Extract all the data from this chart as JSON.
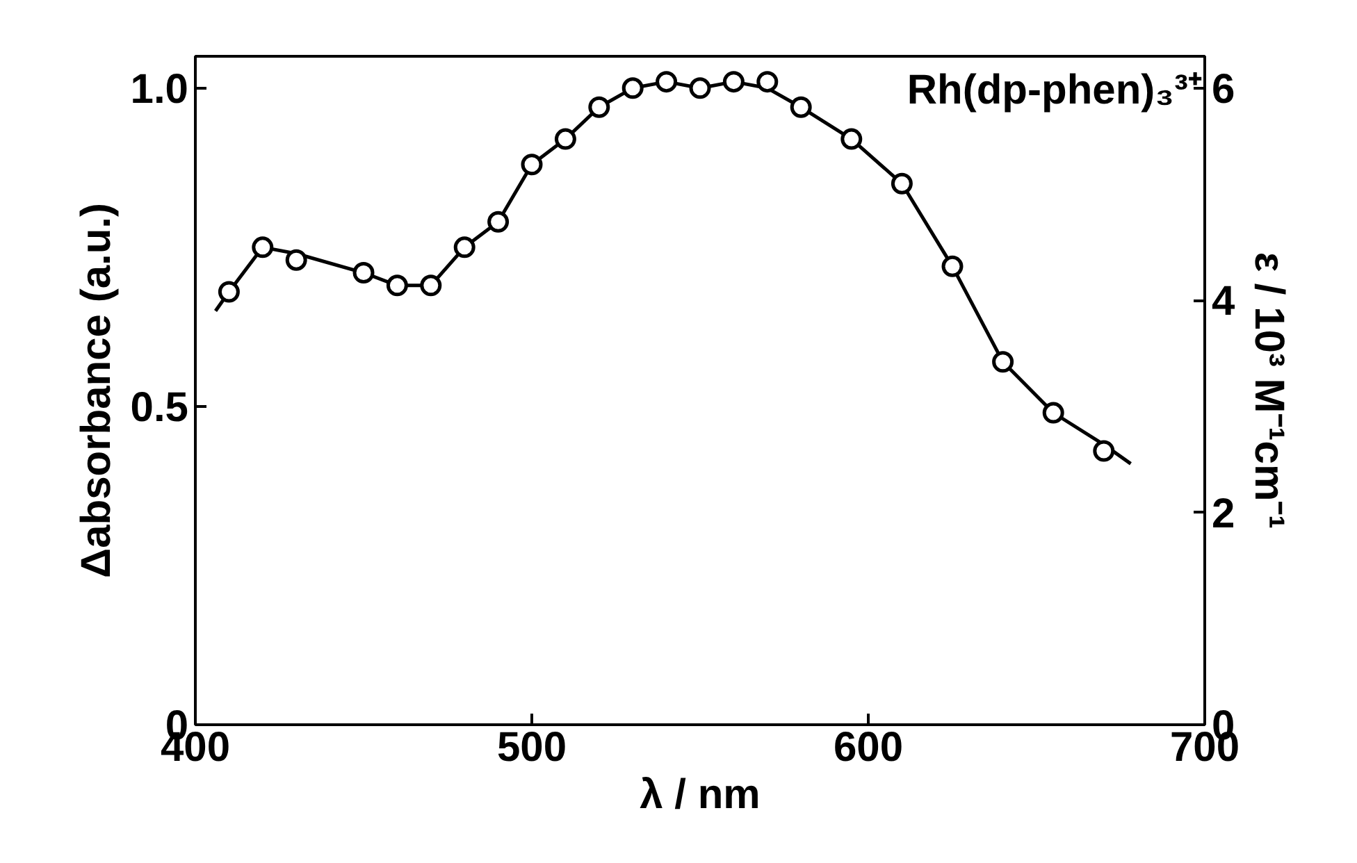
{
  "chart_data": {
    "type": "scatter",
    "xlabel": "λ / nm",
    "ylabel": "Δabsorbance (a.u.)",
    "y2label": "ε / 10³ M⁻¹cm⁻¹",
    "xlim": [
      400,
      700
    ],
    "xticks": [
      400,
      500,
      600,
      700
    ],
    "ylim": [
      0,
      1.05
    ],
    "yticks": [
      0,
      0.5,
      {
        "value": 1,
        "label": "1.0"
      }
    ],
    "y2lim": [
      0,
      6.3
    ],
    "y2ticks": [
      0,
      2,
      4,
      6
    ],
    "annotations": [
      "Rh(dp-phen)₃³⁺"
    ],
    "series": [
      {
        "marker": "circle",
        "color": "#000000",
        "x": [
          410,
          420,
          430,
          450,
          460,
          470,
          480,
          490,
          500,
          510,
          520,
          530,
          540,
          550,
          560,
          570,
          580,
          595,
          610,
          625,
          640,
          655,
          670
        ],
        "values": [
          0.68,
          0.75,
          0.73,
          0.71,
          0.69,
          0.69,
          0.75,
          0.79,
          0.88,
          0.92,
          0.97,
          1.0,
          1.01,
          1.0,
          1.01,
          1.01,
          0.97,
          0.92,
          0.85,
          0.72,
          0.57,
          0.49,
          0.43
        ]
      },
      {
        "type": "line",
        "marker": "none",
        "color": "#000000",
        "x": [
          406,
          410,
          420,
          430,
          450,
          460,
          470,
          480,
          490,
          500,
          510,
          520,
          530,
          540,
          550,
          560,
          570,
          580,
          595,
          610,
          625,
          640,
          655,
          670,
          678
        ],
        "values": [
          0.65,
          0.68,
          0.75,
          0.74,
          0.71,
          0.69,
          0.69,
          0.75,
          0.79,
          0.88,
          0.92,
          0.97,
          1.0,
          1.01,
          1.0,
          1.01,
          1.0,
          0.97,
          0.92,
          0.85,
          0.72,
          0.57,
          0.49,
          0.44,
          0.41
        ]
      }
    ]
  }
}
